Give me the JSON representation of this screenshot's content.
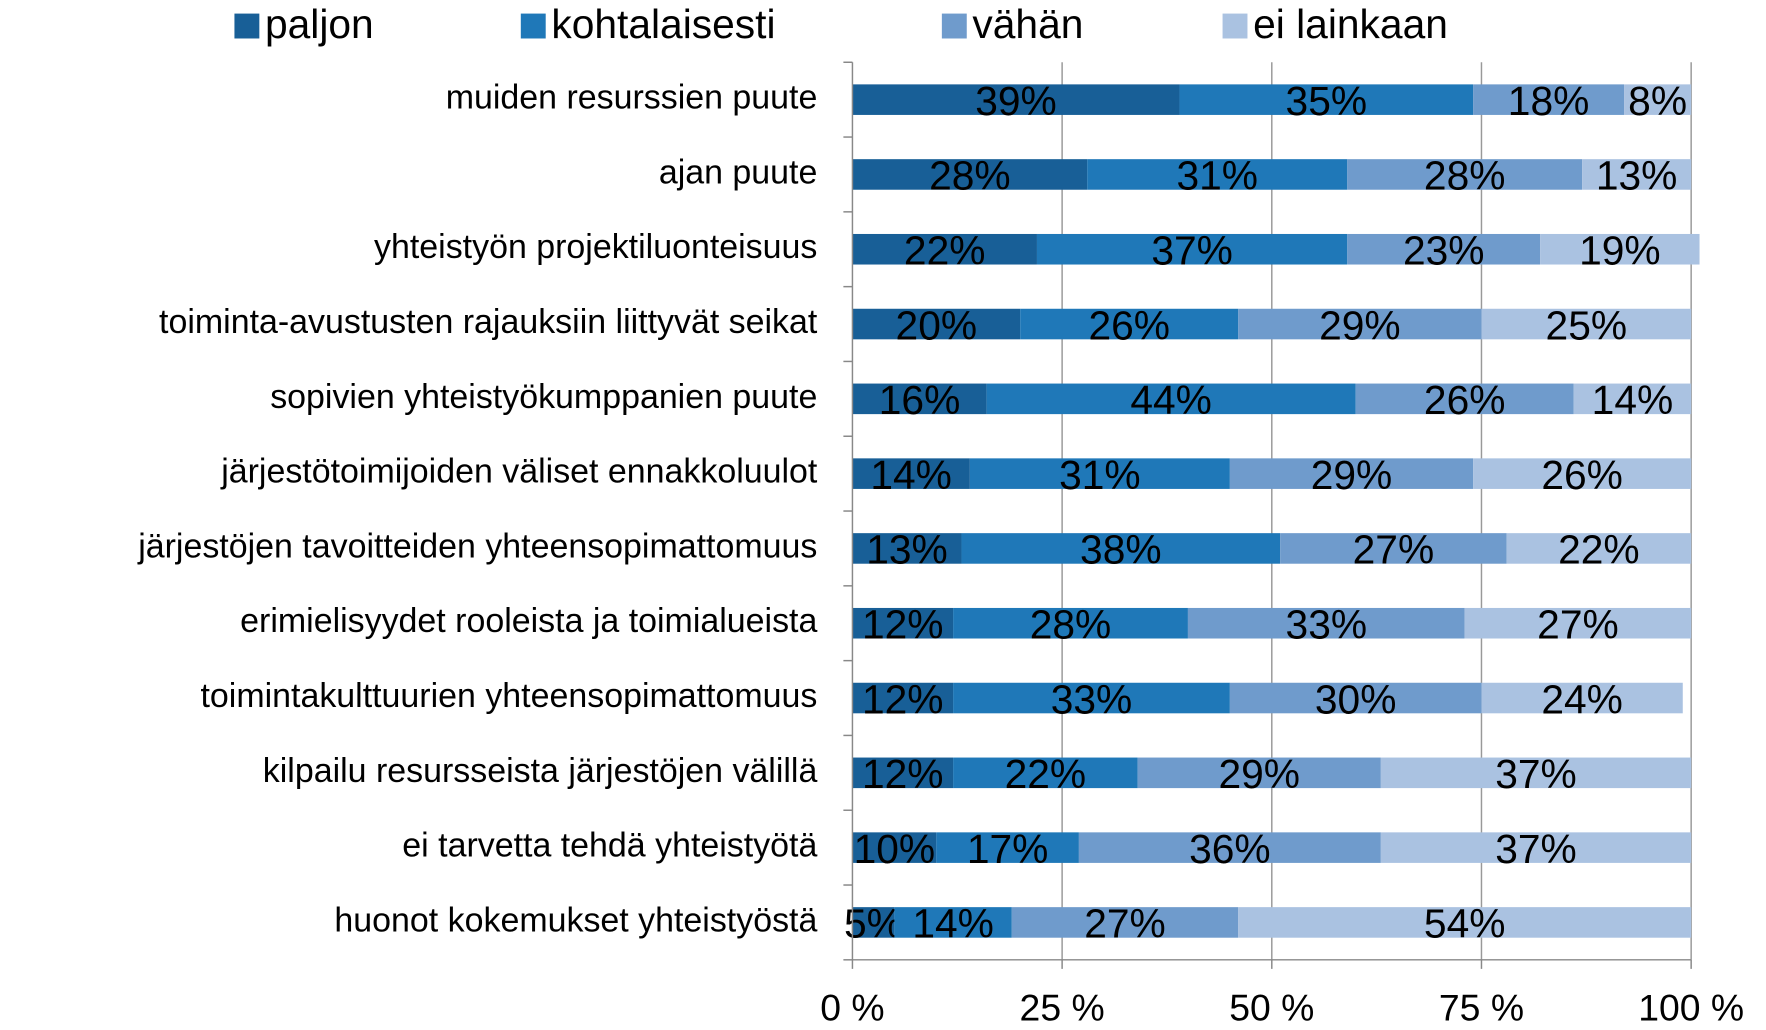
{
  "chart_data": {
    "type": "stacked-bar-horizontal",
    "categories": [
      "muiden resurssien puute",
      "ajan puute",
      "yhteistyön projektiluonteisuus",
      "toiminta-avustusten rajauksiin liittyvät seikat",
      "sopivien yhteistyökumppanien puute",
      "järjestötoimijoiden väliset ennakkoluulot",
      "järjestöjen tavoitteiden yhteensopimattomuus",
      "erimielisyydet rooleista ja toimialueista",
      "toimintakulttuurien yhteensopimattomuus",
      "kilpailu resursseista järjestöjen välillä",
      "ei tarvetta tehdä yhteistyötä",
      "huonot kokemukset yhteistyöstä"
    ],
    "series": [
      {
        "name": "paljon",
        "color": "#185f97",
        "values": [
          39,
          28,
          22,
          20,
          16,
          14,
          13,
          12,
          12,
          12,
          10,
          5
        ],
        "value_labels": [
          "39%",
          "28%",
          "22%",
          "20%",
          "16%",
          "14%",
          "13%",
          "12%",
          "12%",
          "12%",
          "10%",
          "5%"
        ]
      },
      {
        "name": "kohtalaisesti",
        "color": "#1f78b8",
        "values": [
          35,
          31,
          37,
          26,
          44,
          31,
          38,
          28,
          33,
          22,
          17,
          14
        ],
        "value_labels": [
          "35%",
          "31%",
          "37%",
          "26%",
          "44%",
          "31%",
          "38%",
          "28%",
          "33%",
          "22%",
          "17%",
          "14%"
        ]
      },
      {
        "name": "vähän",
        "color": "#6f9bcc",
        "values": [
          18,
          28,
          23,
          29,
          26,
          29,
          27,
          33,
          30,
          29,
          36,
          27
        ],
        "value_labels": [
          "18%",
          "28%",
          "23%",
          "29%",
          "26%",
          "29%",
          "27%",
          "33%",
          "30%",
          "29%",
          "36%",
          "27%"
        ]
      },
      {
        "name": "ei lainkaan",
        "color": "#aac2e1",
        "values": [
          8,
          13,
          19,
          25,
          14,
          26,
          22,
          27,
          24,
          37,
          37,
          54
        ],
        "value_labels": [
          "8%",
          "13%",
          "19%",
          "25%",
          "14%",
          "26%",
          "22%",
          "27%",
          "24%",
          "37%",
          "37%",
          "54%"
        ]
      }
    ],
    "xlim": [
      0,
      100
    ],
    "xticks": [
      {
        "value": 0,
        "label": "0 %"
      },
      {
        "value": 25,
        "label": "25 %"
      },
      {
        "value": 50,
        "label": "50 %"
      },
      {
        "value": 75,
        "label": "75 %"
      },
      {
        "value": 100,
        "label": "100 %"
      }
    ],
    "grid": true
  }
}
